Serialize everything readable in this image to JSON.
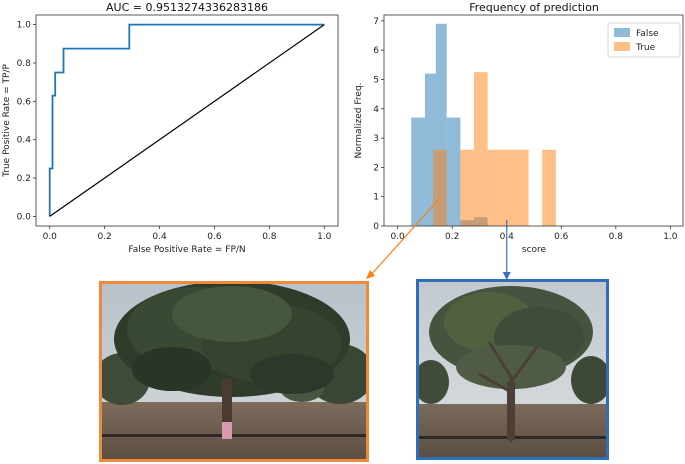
{
  "chart_data": [
    {
      "type": "line",
      "title": "AUC = 0.9513274336283186",
      "xlabel": "False Positive Rate = FP/N",
      "ylabel": "True Positive Rate = TP/P",
      "xlim": [
        -0.05,
        1.05
      ],
      "ylim": [
        -0.05,
        1.05
      ],
      "xticks": [
        "0.0",
        "0.2",
        "0.4",
        "0.6",
        "0.8",
        "1.0"
      ],
      "yticks": [
        "0.0",
        "0.2",
        "0.4",
        "0.6",
        "0.8",
        "1.0"
      ],
      "series": [
        {
          "color": "#1f77b4",
          "x": [
            0,
            0,
            0.01,
            0.01,
            0.02,
            0.02,
            0.03,
            0.03,
            0.05,
            0.05,
            0.29,
            0.29,
            1.0
          ],
          "y": [
            0,
            0.25,
            0.25,
            0.63,
            0.63,
            0.75,
            0.75,
            0.75,
            0.75,
            0.875,
            0.875,
            1.0,
            1.0
          ]
        },
        {
          "color": "#000000",
          "x": [
            0,
            1
          ],
          "y": [
            0,
            1
          ]
        }
      ]
    },
    {
      "type": "bar",
      "title": "Frequency of prediction",
      "xlabel": "score",
      "ylabel": "Normalized Freq.",
      "xlim": [
        -0.05,
        1.05
      ],
      "ylim": [
        0,
        7.2
      ],
      "xticks": [
        "0.0",
        "0.2",
        "0.4",
        "0.6",
        "0.8",
        "1.0"
      ],
      "yticks": [
        "0",
        "1",
        "2",
        "3",
        "4",
        "5",
        "6",
        "7"
      ],
      "legend_position": "top-right",
      "series": [
        {
          "name": "False",
          "color": "#1f77b4",
          "bins": [
            [
              0.05,
              0.1,
              3.7
            ],
            [
              0.1,
              0.14,
              5.2
            ],
            [
              0.14,
              0.18,
              6.9
            ],
            [
              0.18,
              0.23,
              3.7
            ],
            [
              0.23,
              0.28,
              0.2
            ],
            [
              0.28,
              0.33,
              0.3
            ]
          ]
        },
        {
          "name": "True",
          "color": "#ff7f0e",
          "bins": [
            [
              0.13,
              0.18,
              2.6
            ],
            [
              0.23,
              0.28,
              2.6
            ],
            [
              0.28,
              0.33,
              5.25
            ],
            [
              0.33,
              0.38,
              2.6
            ],
            [
              0.38,
              0.43,
              2.6
            ],
            [
              0.43,
              0.48,
              2.6
            ],
            [
              0.53,
              0.58,
              2.6
            ]
          ]
        }
      ],
      "annotations": [
        {
          "target_score": 0.15,
          "color": "#ff7f0e",
          "points_to": "orange-framed photo"
        },
        {
          "target_score": 0.4,
          "color": "#1f77b4",
          "points_to": "blue-framed photo"
        }
      ]
    }
  ]
}
